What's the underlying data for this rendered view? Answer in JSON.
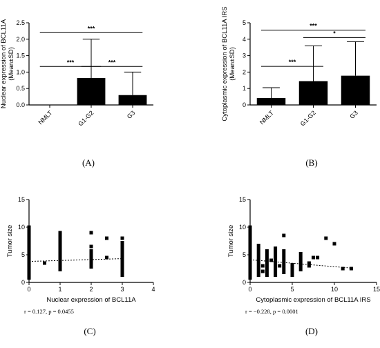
{
  "chart_data": [
    {
      "id": "A",
      "type": "bar",
      "panel_label": "(A)",
      "ylabel_lines": [
        "Nuclear expression of BCL11A",
        "(Mean±SD)"
      ],
      "xlabel": "",
      "categories": [
        "NMLT",
        "G1-G2",
        "G3"
      ],
      "values": [
        0,
        0.82,
        0.3
      ],
      "errors": [
        0,
        1.18,
        0.7
      ],
      "ylim": [
        0,
        2.5
      ],
      "yticks": [
        "0.0",
        "0.5",
        "1.0",
        "1.5",
        "2.0",
        "2.5"
      ],
      "significance": [
        {
          "from": 0,
          "to": 2,
          "label": "***",
          "level": 2.2
        },
        {
          "from": 0,
          "to": 1,
          "label": "***",
          "level": 1.17
        },
        {
          "from": 1,
          "to": 2,
          "label": "***",
          "level": 1.17
        }
      ]
    },
    {
      "id": "B",
      "type": "bar",
      "panel_label": "(B)",
      "ylabel_lines": [
        "Cytoplasmic expression of BCL11A IRS",
        "(Mean±SD)"
      ],
      "xlabel": "",
      "categories": [
        "NMLT",
        "G1-G2",
        "G3"
      ],
      "values": [
        0.42,
        1.45,
        1.78
      ],
      "errors": [
        0.63,
        2.15,
        2.07
      ],
      "ylim": [
        0,
        5
      ],
      "yticks": [
        "0",
        "1",
        "2",
        "3",
        "4",
        "5"
      ],
      "significance": [
        {
          "from": 0,
          "to": 2,
          "label": "***",
          "level": 4.55
        },
        {
          "from": 1,
          "to": 2,
          "label": "*",
          "level": 4.1
        },
        {
          "from": 0,
          "to": 1,
          "label": "***",
          "level": 2.35
        }
      ]
    },
    {
      "id": "C",
      "type": "scatter",
      "panel_label": "(C)",
      "ylabel": "Tumor size",
      "xlabel": "Nuclear expression of BCL11A",
      "stat": "r = 0.127, p = 0.0455",
      "xlim": [
        0,
        4
      ],
      "ylim": [
        0,
        15
      ],
      "xticks": [
        "0",
        "1",
        "2",
        "3",
        "4"
      ],
      "yticks": [
        "0",
        "5",
        "10",
        "15"
      ],
      "trend": {
        "x": [
          0,
          3
        ],
        "y": [
          3.8,
          4.3
        ]
      },
      "columns": [
        {
          "x": 0,
          "ymin": 0.5,
          "ymax": 10
        },
        {
          "x": 1,
          "ymin": 2,
          "ymax": 9
        },
        {
          "x": 2,
          "ymin": 2.5,
          "ymax": 6
        },
        {
          "x": 3,
          "ymin": 1,
          "ymax": 7.5
        }
      ],
      "points": [
        {
          "x": 0,
          "y": 10
        },
        {
          "x": 0.5,
          "y": 3.5
        },
        {
          "x": 1,
          "y": 9
        },
        {
          "x": 1,
          "y": 8
        },
        {
          "x": 1,
          "y": 7
        },
        {
          "x": 1,
          "y": 5.5
        },
        {
          "x": 2,
          "y": 9
        },
        {
          "x": 2,
          "y": 6.5
        },
        {
          "x": 2.5,
          "y": 8
        },
        {
          "x": 2.5,
          "y": 4.5
        },
        {
          "x": 3,
          "y": 8
        }
      ]
    },
    {
      "id": "D",
      "type": "scatter",
      "panel_label": "(D)",
      "ylabel": "Tumor size",
      "xlabel": "Cytoplasmic expression of BCL11A IRS",
      "stat": "r = −0.228, p = 0.0001",
      "xlim": [
        0,
        15
      ],
      "ylim": [
        0,
        15
      ],
      "xticks": [
        "0",
        "5",
        "10",
        "15"
      ],
      "yticks": [
        "0",
        "5",
        "10",
        "15"
      ],
      "trend": {
        "x": [
          0,
          12
        ],
        "y": [
          4.1,
          2.6
        ]
      },
      "columns": [
        {
          "x": 0,
          "ymin": 0.5,
          "ymax": 10
        },
        {
          "x": 1,
          "ymin": 1,
          "ymax": 7
        },
        {
          "x": 2,
          "ymin": 1,
          "ymax": 6
        },
        {
          "x": 3,
          "ymin": 1,
          "ymax": 6.5
        },
        {
          "x": 4,
          "ymin": 1.5,
          "ymax": 6
        },
        {
          "x": 5,
          "ymin": 1,
          "ymax": 3.5
        },
        {
          "x": 6,
          "ymin": 2,
          "ymax": 5.5
        }
      ],
      "points": [
        {
          "x": 0,
          "y": 10
        },
        {
          "x": 1.5,
          "y": 3
        },
        {
          "x": 1.5,
          "y": 2
        },
        {
          "x": 2.5,
          "y": 4
        },
        {
          "x": 3.5,
          "y": 3
        },
        {
          "x": 4,
          "y": 8.5
        },
        {
          "x": 5,
          "y": 2.5
        },
        {
          "x": 7,
          "y": 3.5
        },
        {
          "x": 7,
          "y": 3
        },
        {
          "x": 7.5,
          "y": 4.5
        },
        {
          "x": 8,
          "y": 4.5
        },
        {
          "x": 9,
          "y": 8
        },
        {
          "x": 10,
          "y": 7
        },
        {
          "x": 11,
          "y": 2.5
        },
        {
          "x": 12,
          "y": 2.5
        }
      ]
    }
  ]
}
